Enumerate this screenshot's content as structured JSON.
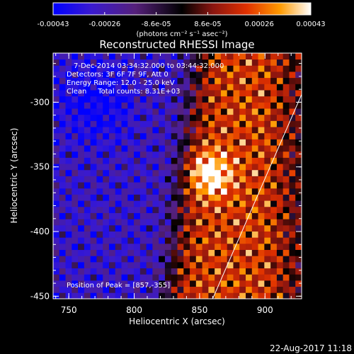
{
  "chart_data": {
    "type": "heatmap",
    "title": "Reconstructed RHESSI Image",
    "xlabel": "Heliocentric X (arcsec)",
    "ylabel": "Heliocentric Y (arcsec)",
    "xlim": [
      738,
      928
    ],
    "ylim": [
      -452,
      -262
    ],
    "x_ticks": [
      "750",
      "800",
      "850",
      "900"
    ],
    "y_ticks": [
      "-300",
      "-350",
      "-400",
      "-450"
    ],
    "colorbar": {
      "ticks": [
        "-0.00043",
        "-0.00026",
        "-8.6e-05",
        "8.6e-05",
        "0.00026",
        "0.00043"
      ],
      "range": [
        -0.00043,
        0.00043
      ],
      "units": "(photons cm⁻² s⁻¹ asec⁻²)"
    },
    "info_lines": [
      "7-Dec-2014 03:34:32.000 to 03:44:32.000",
      "Detectors: 3F 6F 7F 9F, Att 0",
      "Energy Range: 12.0 - 25.0 keV",
      "Clean     Total counts: 8.31E+03"
    ],
    "peak_label": "Position of Peak = [857,-355]",
    "peak": {
      "x": 857,
      "y": -355
    },
    "limb": [
      {
        "x": 860,
        "y": -452
      },
      {
        "x": 928,
        "y": -294
      }
    ],
    "timestamp": "22-Aug-2017 11:18"
  }
}
